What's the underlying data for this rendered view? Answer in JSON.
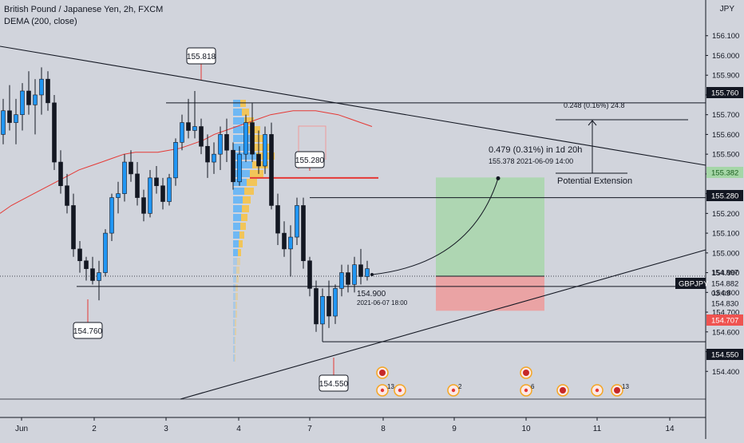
{
  "header": {
    "title": "British Pound / Japanese Yen, 2h, FXCM",
    "indicator": "DEMA (200, close)",
    "currency": "JPY"
  },
  "chart_data": {
    "type": "candlestick",
    "symbol": "GBPJPY",
    "ylim": [
      154.3,
      156.2
    ],
    "y_ticks": [
      "156.100",
      "156.000",
      "155.900",
      "155.800",
      "155.700",
      "155.600",
      "155.500",
      "155.400",
      "155.300",
      "155.200",
      "155.100",
      "155.000",
      "154.900",
      "154.800",
      "154.700",
      "154.600",
      "154.500",
      "154.400"
    ],
    "x_ticks": [
      "Jun",
      "2",
      "3",
      "4",
      "7",
      "8",
      "9",
      "10",
      "11",
      "14"
    ],
    "candles": [
      [
        155.6,
        155.78,
        155.55,
        155.72
      ],
      [
        155.72,
        155.85,
        155.62,
        155.66
      ],
      [
        155.66,
        155.78,
        155.55,
        155.7
      ],
      [
        155.7,
        155.86,
        155.62,
        155.82
      ],
      [
        155.82,
        155.92,
        155.7,
        155.75
      ],
      [
        155.75,
        155.88,
        155.6,
        155.8
      ],
      [
        155.8,
        155.94,
        155.7,
        155.88
      ],
      [
        155.88,
        155.92,
        155.72,
        155.76
      ],
      [
        155.76,
        155.8,
        155.42,
        155.46
      ],
      [
        155.46,
        155.52,
        155.3,
        155.34
      ],
      [
        155.34,
        155.4,
        155.2,
        155.24
      ],
      [
        155.24,
        155.3,
        154.98,
        155.02
      ],
      [
        155.02,
        155.06,
        154.9,
        154.96
      ],
      [
        154.96,
        154.98,
        154.86,
        154.92
      ],
      [
        154.92,
        154.98,
        154.84,
        154.86
      ],
      [
        154.86,
        154.96,
        154.76,
        154.9
      ],
      [
        154.9,
        155.12,
        154.88,
        155.1
      ],
      [
        155.1,
        155.3,
        155.06,
        155.28
      ],
      [
        155.28,
        155.36,
        155.2,
        155.3
      ],
      [
        155.3,
        155.5,
        155.26,
        155.46
      ],
      [
        155.46,
        155.52,
        155.36,
        155.4
      ],
      [
        155.4,
        155.46,
        155.24,
        155.28
      ],
      [
        155.28,
        155.32,
        155.16,
        155.2
      ],
      [
        155.2,
        155.42,
        155.18,
        155.38
      ],
      [
        155.38,
        155.44,
        155.3,
        155.34
      ],
      [
        155.34,
        155.38,
        155.22,
        155.26
      ],
      [
        155.26,
        155.4,
        155.24,
        155.38
      ],
      [
        155.38,
        155.58,
        155.34,
        155.56
      ],
      [
        155.56,
        155.7,
        155.52,
        155.66
      ],
      [
        155.66,
        155.78,
        155.58,
        155.62
      ],
      [
        155.62,
        155.82,
        155.58,
        155.64
      ],
      [
        155.64,
        155.68,
        155.5,
        155.54
      ],
      [
        155.54,
        155.6,
        155.38,
        155.46
      ],
      [
        155.46,
        155.56,
        155.4,
        155.5
      ],
      [
        155.5,
        155.64,
        155.42,
        155.6
      ],
      [
        155.6,
        155.68,
        155.46,
        155.52
      ],
      [
        155.52,
        155.56,
        155.32,
        155.36
      ],
      [
        155.36,
        155.54,
        155.34,
        155.5
      ],
      [
        155.5,
        155.7,
        155.46,
        155.66
      ],
      [
        155.66,
        155.76,
        155.46,
        155.5
      ],
      [
        155.5,
        155.62,
        155.4,
        155.44
      ],
      [
        155.44,
        155.64,
        155.4,
        155.6
      ],
      [
        155.6,
        155.66,
        155.22,
        155.24
      ],
      [
        155.24,
        155.3,
        155.04,
        155.1
      ],
      [
        155.1,
        155.16,
        154.98,
        155.02
      ],
      [
        155.02,
        155.14,
        154.88,
        155.08
      ],
      [
        155.08,
        155.28,
        155.04,
        155.24
      ],
      [
        155.24,
        155.28,
        154.92,
        154.96
      ],
      [
        154.96,
        154.98,
        154.78,
        154.82
      ],
      [
        154.82,
        154.86,
        154.6,
        154.64
      ],
      [
        154.64,
        154.82,
        154.55,
        154.78
      ],
      [
        154.78,
        154.86,
        154.62,
        154.68
      ],
      [
        154.68,
        154.84,
        154.64,
        154.82
      ],
      [
        154.82,
        154.94,
        154.78,
        154.9
      ],
      [
        154.9,
        154.94,
        154.8,
        154.84
      ],
      [
        154.84,
        154.98,
        154.8,
        154.94
      ],
      [
        154.94,
        155.02,
        154.84,
        154.88
      ],
      [
        154.88,
        154.96,
        154.86,
        154.92
      ]
    ],
    "dema": [
      155.2,
      155.24,
      155.27,
      155.3,
      155.33,
      155.36,
      155.39,
      155.42,
      155.44,
      155.46,
      155.48,
      155.5,
      155.51,
      155.51,
      155.51,
      155.52,
      155.53,
      155.55,
      155.57,
      155.6,
      155.62,
      155.64,
      155.66,
      155.68,
      155.7,
      155.71,
      155.72,
      155.72,
      155.72,
      155.71,
      155.7,
      155.68,
      155.66,
      155.64
    ],
    "price_labels": [
      {
        "text": "155.760",
        "value": 155.76,
        "style": "dark"
      },
      {
        "text": "155.382",
        "value": 155.382,
        "style": "green"
      },
      {
        "text": "155.280",
        "value": 155.28,
        "style": "dark"
      },
      {
        "text": "154.897",
        "value": 154.897,
        "style": "plain"
      },
      {
        "text": "GBPJPY",
        "value": 154.882,
        "style": "dark"
      },
      {
        "text": "154.882",
        "value": 154.882,
        "style": "plain"
      },
      {
        "text": "03:09",
        "value": 154.85,
        "style": "plain"
      },
      {
        "text": "154.830",
        "value": 154.83,
        "style": "plain"
      },
      {
        "text": "154.707",
        "value": 154.707,
        "style": "red"
      },
      {
        "text": "154.550",
        "value": 154.55,
        "style": "dark"
      }
    ],
    "callouts": [
      {
        "text": "155.818",
        "value": 155.818
      },
      {
        "text": "154.760",
        "value": 154.76
      },
      {
        "text": "155.280",
        "value": 155.28
      },
      {
        "text": "154.550",
        "value": 154.55
      }
    ],
    "annotations": {
      "projection": "0.479 (0.31%) in 1d 20h",
      "projection_detail": "155.378     2021-06-09  14:00",
      "extension_measure": "0.248 (0.16%) 24.8",
      "extension_label": "Potential Extension",
      "point_price": "154.900",
      "point_date": "2021-06-07 18:00"
    },
    "trade": {
      "entry": 154.882,
      "target": 155.382,
      "stop": 154.707
    },
    "events": [
      {
        "badge": "",
        "kind": "flag"
      },
      {
        "badge": "13",
        "kind": "dot"
      },
      {
        "badge": "",
        "kind": "dot"
      },
      {
        "badge": "2",
        "kind": "dot"
      },
      {
        "badge": "",
        "kind": "flag"
      },
      {
        "badge": "6",
        "kind": "dot"
      },
      {
        "badge": "",
        "kind": "flag"
      },
      {
        "badge": "",
        "kind": "dot"
      },
      {
        "badge": "13",
        "kind": "flag"
      }
    ],
    "colors": {
      "up": "#2196f3",
      "down": "#131722",
      "dema": "#e53935",
      "profit": "#a5d6a7",
      "loss": "#ef9a9a",
      "vp_blue": "#64b5f6",
      "vp_yellow": "#f5c34a"
    }
  }
}
